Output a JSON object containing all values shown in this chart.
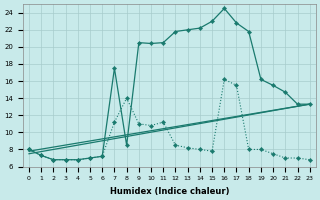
{
  "xlabel": "Humidex (Indice chaleur)",
  "bg_color": "#c8eaea",
  "line_color": "#1a7a6e",
  "grid_color": "#a8cccc",
  "xlim": [
    -0.5,
    23.5
  ],
  "ylim": [
    6,
    25
  ],
  "xticks": [
    0,
    1,
    2,
    3,
    4,
    5,
    6,
    7,
    8,
    9,
    10,
    11,
    12,
    13,
    14,
    15,
    16,
    17,
    18,
    19,
    20,
    21,
    22,
    23
  ],
  "yticks": [
    6,
    8,
    10,
    12,
    14,
    16,
    18,
    20,
    22,
    24
  ],
  "curve1_x": [
    0,
    1,
    2,
    3,
    4,
    5,
    6,
    7,
    8,
    9,
    10,
    11,
    12,
    13,
    14,
    15,
    16,
    17,
    18,
    19,
    20,
    21,
    22,
    23
  ],
  "curve1_y": [
    8.0,
    7.3,
    6.8,
    6.8,
    6.8,
    7.0,
    7.2,
    17.5,
    8.5,
    20.5,
    20.4,
    20.5,
    21.8,
    22.0,
    22.2,
    23.0,
    24.5,
    22.8,
    21.8,
    16.2,
    15.5,
    14.7,
    13.3,
    13.3
  ],
  "curve2_x": [
    0,
    1,
    2,
    3,
    4,
    5,
    6,
    7,
    8,
    9,
    10,
    11,
    12,
    13,
    14,
    15,
    16,
    17,
    18,
    19,
    20,
    21,
    22,
    23
  ],
  "curve2_y": [
    8.0,
    7.3,
    6.8,
    6.8,
    6.8,
    7.0,
    7.2,
    11.2,
    14.0,
    11.0,
    10.8,
    11.2,
    8.5,
    8.2,
    8.0,
    7.8,
    16.2,
    15.5,
    8.0,
    8.0,
    7.5,
    7.0,
    7.0,
    6.8
  ],
  "line3_x": [
    0,
    23
  ],
  "line3_y": [
    7.8,
    13.3
  ],
  "line4_x": [
    0,
    23
  ],
  "line4_y": [
    7.5,
    13.3
  ]
}
